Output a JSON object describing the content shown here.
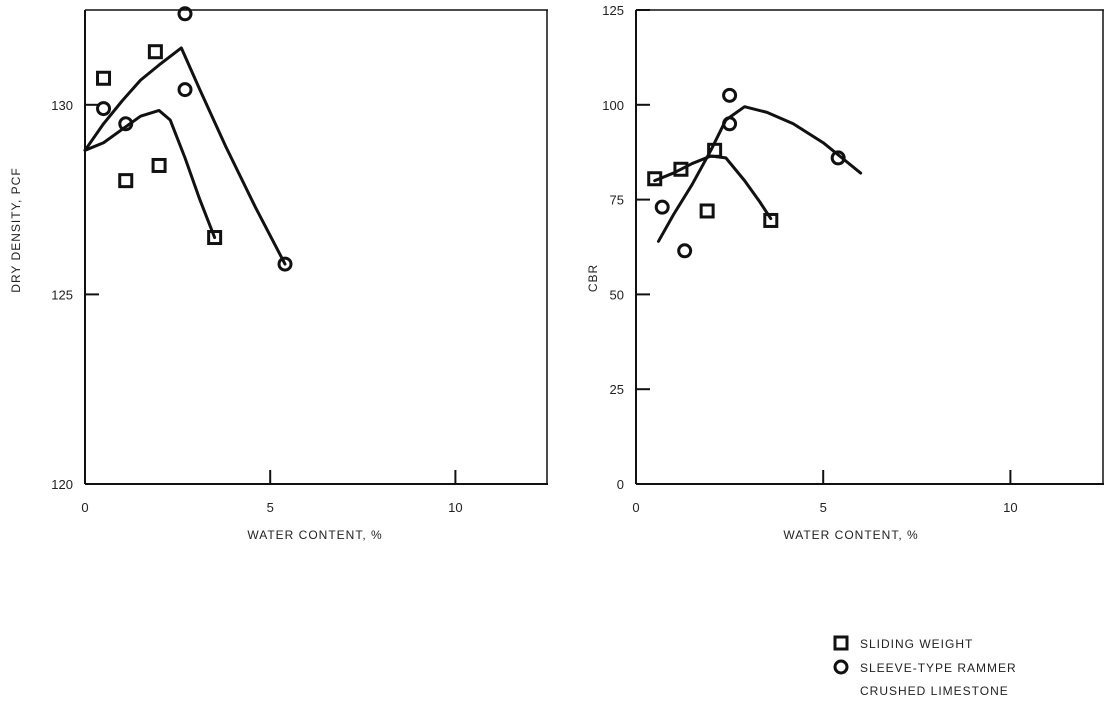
{
  "chart_data": [
    {
      "type": "scatter",
      "title": "",
      "xlabel": "WATER CONTENT, %",
      "ylabel": "DRY DENSITY, PCF",
      "xlim": [
        0,
        12.5
      ],
      "ylim": [
        120,
        132.5
      ],
      "x_ticks": [
        0,
        5,
        10
      ],
      "x_tick_labels": [
        "0",
        "5",
        "10"
      ],
      "y_ticks": [
        120,
        125,
        130
      ],
      "y_tick_labels": [
        "120",
        "125",
        "130"
      ],
      "series": [
        {
          "name": "SLIDING WEIGHT",
          "marker": "square",
          "points": [
            [
              0.5,
              130.7
            ],
            [
              1.1,
              128.0
            ],
            [
              1.9,
              131.4
            ],
            [
              2.0,
              128.4
            ],
            [
              3.5,
              126.5
            ]
          ],
          "curve": [
            [
              0,
              128.8
            ],
            [
              0.5,
              129.0
            ],
            [
              1.0,
              129.35
            ],
            [
              1.5,
              129.7
            ],
            [
              2.0,
              129.85
            ],
            [
              2.3,
              129.6
            ],
            [
              2.7,
              128.6
            ],
            [
              3.1,
              127.5
            ],
            [
              3.5,
              126.5
            ]
          ]
        },
        {
          "name": "SLEEVE-TYPE RAMMER",
          "marker": "circle",
          "points": [
            [
              0.5,
              129.9
            ],
            [
              1.1,
              129.5
            ],
            [
              2.7,
              132.4
            ],
            [
              2.7,
              130.4
            ],
            [
              5.4,
              125.8
            ]
          ],
          "curve": [
            [
              0,
              128.8
            ],
            [
              0.5,
              129.5
            ],
            [
              1.0,
              130.1
            ],
            [
              1.5,
              130.65
            ],
            [
              2.0,
              131.05
            ],
            [
              2.6,
              131.5
            ],
            [
              3.1,
              130.4
            ],
            [
              3.8,
              128.9
            ],
            [
              4.6,
              127.3
            ],
            [
              5.4,
              125.8
            ]
          ]
        }
      ]
    },
    {
      "type": "scatter",
      "title": "",
      "xlabel": "WATER CONTENT, %",
      "ylabel": "CBR",
      "xlim": [
        0,
        12.5
      ],
      "ylim": [
        0,
        125
      ],
      "x_ticks": [
        0,
        5,
        10
      ],
      "x_tick_labels": [
        "0",
        "5",
        "10"
      ],
      "y_ticks": [
        0,
        25,
        50,
        75,
        100,
        125
      ],
      "y_tick_labels": [
        "0",
        "25",
        "50",
        "75",
        "100",
        "125"
      ],
      "series": [
        {
          "name": "SLIDING WEIGHT",
          "marker": "square",
          "points": [
            [
              0.5,
              80.5
            ],
            [
              1.2,
              83.0
            ],
            [
              1.9,
              72.0
            ],
            [
              2.1,
              88.0
            ],
            [
              3.6,
              69.5
            ]
          ],
          "curve": [
            [
              0.5,
              80.0
            ],
            [
              1.0,
              82.0
            ],
            [
              1.5,
              84.5
            ],
            [
              2.0,
              86.5
            ],
            [
              2.4,
              86.0
            ],
            [
              2.9,
              80.0
            ],
            [
              3.3,
              74.5
            ],
            [
              3.6,
              70.0
            ]
          ]
        },
        {
          "name": "SLEEVE-TYPE RAMMER",
          "marker": "circle",
          "points": [
            [
              0.7,
              73.0
            ],
            [
              1.3,
              61.5
            ],
            [
              2.5,
              102.5
            ],
            [
              2.5,
              95.0
            ],
            [
              5.4,
              86.0
            ]
          ],
          "curve": [
            [
              0.6,
              64.0
            ],
            [
              1.0,
              71.0
            ],
            [
              1.5,
              79.0
            ],
            [
              2.0,
              88.0
            ],
            [
              2.4,
              96.0
            ],
            [
              2.9,
              99.5
            ],
            [
              3.5,
              98.0
            ],
            [
              4.2,
              95.0
            ],
            [
              5.0,
              90.0
            ],
            [
              5.5,
              86.0
            ],
            [
              6.0,
              82.0
            ]
          ]
        }
      ]
    }
  ],
  "legend": {
    "position": "bottom-right",
    "items": [
      {
        "label": "SLIDING WEIGHT",
        "marker": "square"
      },
      {
        "label": "SLEEVE-TYPE RAMMER",
        "marker": "circle"
      }
    ],
    "caption": "CRUSHED LIMESTONE"
  }
}
